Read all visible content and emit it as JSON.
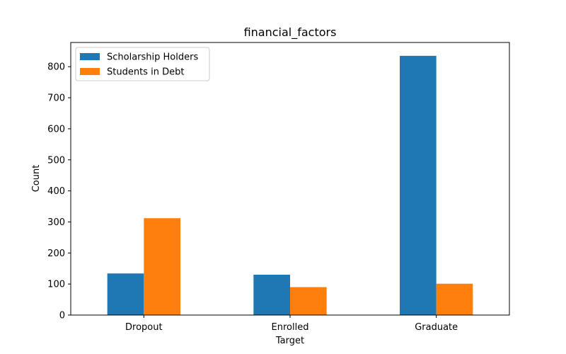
{
  "chart_data": {
    "type": "bar",
    "title": "financial_factors",
    "xlabel": "Target",
    "ylabel": "Count",
    "categories": [
      "Dropout",
      "Enrolled",
      "Graduate"
    ],
    "series": [
      {
        "name": "Scholarship Holders",
        "values": [
          134,
          130,
          835
        ],
        "color": "#1f77b4"
      },
      {
        "name": "Students in Debt",
        "values": [
          312,
          90,
          101
        ],
        "color": "#ff7f0e"
      }
    ],
    "ylim": [
      0,
      878
    ],
    "yticks": [
      "0",
      "100",
      "200",
      "300",
      "400",
      "500",
      "600",
      "700",
      "800"
    ],
    "grid": false,
    "legend_position": "top-left"
  }
}
